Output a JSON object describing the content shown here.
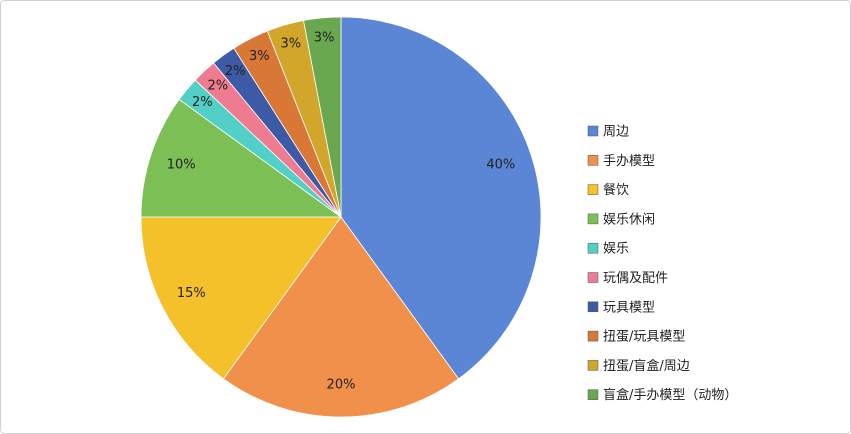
{
  "chart_data": {
    "type": "pie",
    "categories": [
      "周边",
      "手办模型",
      "餐饮",
      "娱乐休闲",
      "娱乐",
      "玩偶及配件",
      "玩具模型",
      "扭蛋/玩具模型",
      "扭蛋/盲盒/周边",
      "盲盒/手办模型（动物）"
    ],
    "values": [
      40,
      20,
      15,
      10,
      2,
      2,
      2,
      3,
      3,
      3
    ],
    "value_labels": [
      "40%",
      "20%",
      "15%",
      "10%",
      "2%",
      "2%",
      "2%",
      "3%",
      "3%",
      "3%"
    ],
    "colors": [
      "#5b86d6",
      "#f1904a",
      "#f5c12a",
      "#7cc055",
      "#52cfc6",
      "#ee7b8f",
      "#3c5aa6",
      "#d97736",
      "#d2a52b",
      "#6aa84f"
    ],
    "legend": "right"
  }
}
